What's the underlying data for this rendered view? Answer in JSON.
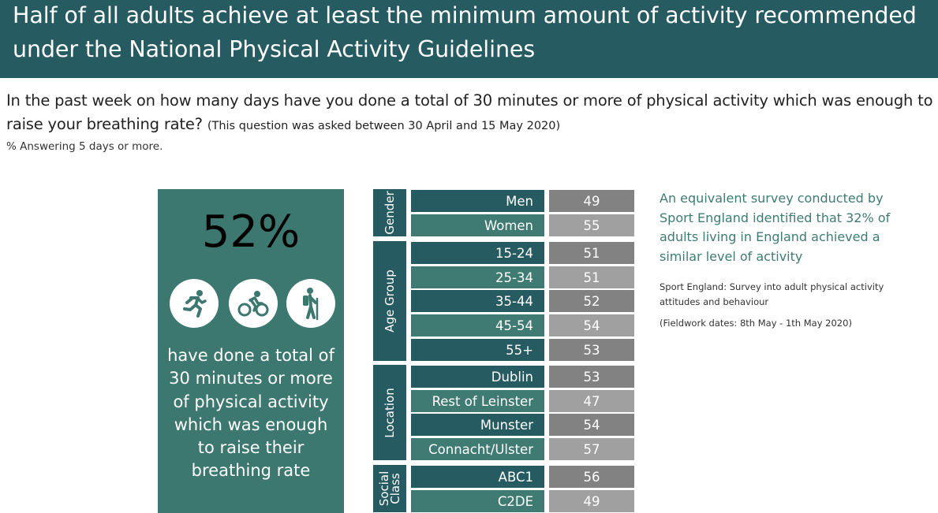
{
  "header": {
    "title_line1": "Half of all adults achieve at least the minimum amount of activity recommended",
    "title_line2": "under the National Physical Activity Guidelines"
  },
  "question": {
    "line1": "In the past week on how many days have you done a total of 30 minutes or more of physical activity which was enough to",
    "line2": "raise your breathing rate?",
    "note": "(This question was asked between 30 April and 15 May 2020)",
    "subtitle": "% Answering 5 days or more."
  },
  "hero": {
    "percent": "52%",
    "icons": [
      "running-icon",
      "cycling-icon",
      "hiking-icon"
    ],
    "text_lines": [
      "have done a total of",
      "30 minutes or more",
      "of physical activity",
      "which was enough",
      "to raise their",
      "breathing rate"
    ]
  },
  "chart_data": {
    "type": "table",
    "groups": [
      {
        "name": "Gender",
        "rows": [
          {
            "label": "Men",
            "value": 49
          },
          {
            "label": "Women",
            "value": 55
          }
        ]
      },
      {
        "name": "Age Group",
        "rows": [
          {
            "label": "15-24",
            "value": 51
          },
          {
            "label": "25-34",
            "value": 51
          },
          {
            "label": "35-44",
            "value": 52
          },
          {
            "label": "45-54",
            "value": 54
          },
          {
            "label": "55+",
            "value": 53
          }
        ]
      },
      {
        "name": "Location",
        "rows": [
          {
            "label": "Dublin",
            "value": 53
          },
          {
            "label": "Rest of Leinster",
            "value": 47
          },
          {
            "label": "Munster",
            "value": 54
          },
          {
            "label": "Connacht/Ulster",
            "value": 57
          }
        ]
      },
      {
        "name": "Social\nClass",
        "rows": [
          {
            "label": "ABC1",
            "value": 56
          },
          {
            "label": "C2DE",
            "value": 49
          }
        ]
      }
    ]
  },
  "sidebar_note": {
    "lines": [
      "An equivalent survey conducted by",
      "Sport England identified that 32% of",
      "adults living in England achieved a",
      "similar level of activity"
    ],
    "source_line1": "Sport England: Survey into adult physical activity",
    "source_line2": "attitudes and behaviour",
    "fieldwork": "(Fieldwork dates: 8th May - 1th May 2020)"
  },
  "colors": {
    "banner": "#275b62",
    "teal": "#3f7b72",
    "grey_dark": "#828282",
    "grey_light": "#a0a0a0"
  }
}
